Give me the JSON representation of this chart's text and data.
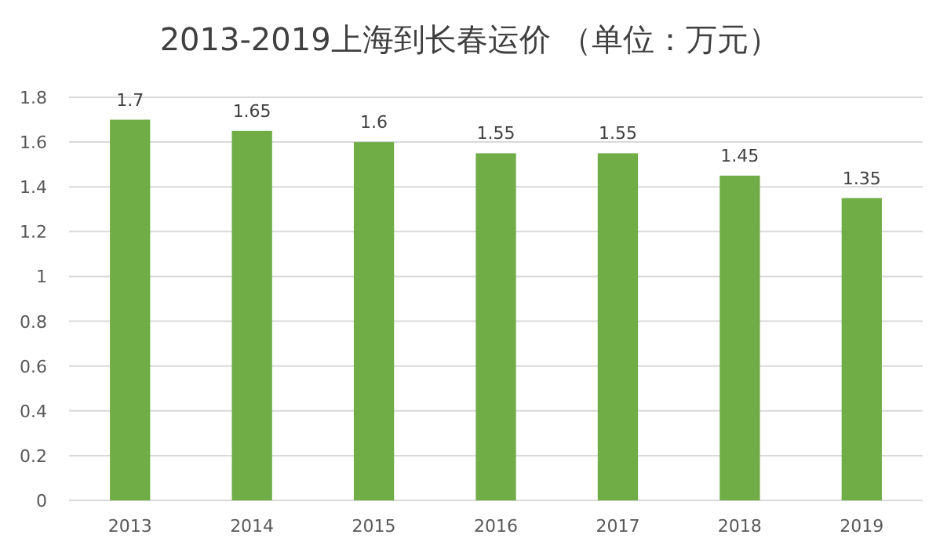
{
  "chart_data": {
    "type": "bar",
    "title": "2013-2019上海到长春运价 （单位：万元）",
    "categories": [
      "2013",
      "2014",
      "2015",
      "2016",
      "2017",
      "2018",
      "2019"
    ],
    "values": [
      1.7,
      1.65,
      1.6,
      1.55,
      1.55,
      1.45,
      1.35
    ],
    "color": "#70ad47",
    "ylim": [
      0,
      1.8
    ],
    "yticks": [
      0,
      0.2,
      0.4,
      0.6,
      0.8,
      1,
      1.2,
      1.4,
      1.6,
      1.8
    ],
    "grid": "y",
    "data_labels": true
  }
}
